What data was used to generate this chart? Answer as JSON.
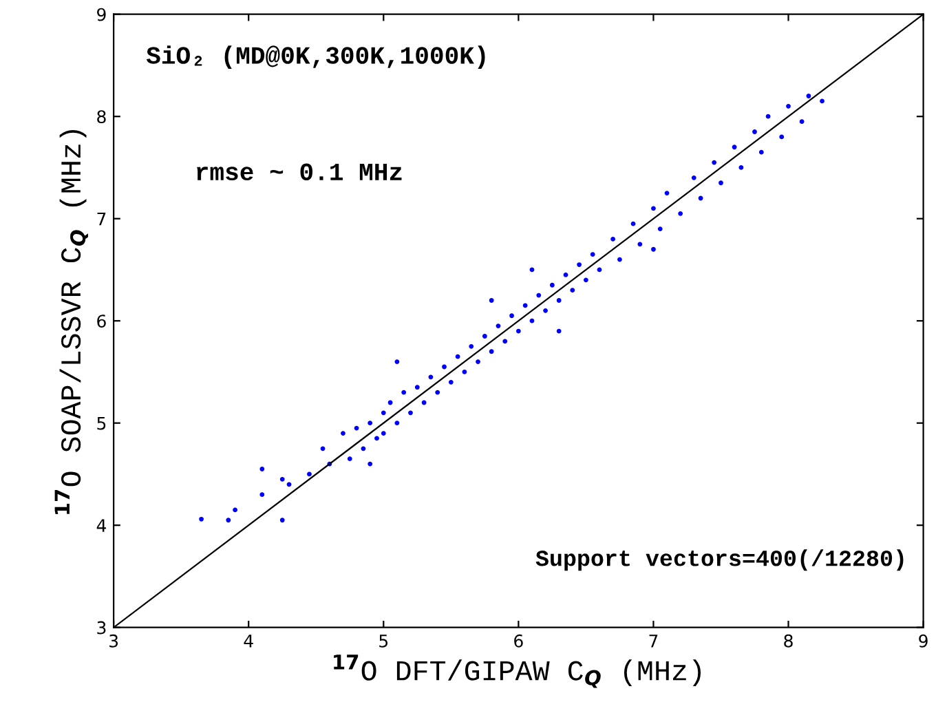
{
  "chart_data": {
    "type": "scatter",
    "xlabel": "$^{17}$O DFT/GIPAW C$_{Q}$ (MHz)",
    "ylabel": "$^{17}$O SOAP/LSSVR C$_{Q}$ (MHz)",
    "annotations": [
      "SiO₂ (MD@0K,300K,1000K)",
      "rmse ~ 0.1 MHz",
      "Support vectors=400(/12280)"
    ],
    "xlim": [
      3,
      9
    ],
    "ylim": [
      3,
      9
    ],
    "xticks": [
      3,
      4,
      5,
      6,
      7,
      8,
      9
    ],
    "yticks": [
      3,
      4,
      5,
      6,
      7,
      8,
      9
    ],
    "grid": false,
    "legend": false,
    "marker": "circle",
    "series": [
      {
        "color": "#0000ff",
        "x": [
          3.65,
          3.85,
          3.9,
          4.1,
          4.1,
          4.25,
          4.25,
          4.3,
          4.45,
          4.55,
          4.6,
          4.7,
          4.75,
          4.8,
          4.85,
          4.9,
          4.95,
          5.0,
          5.0,
          5.05,
          5.1,
          5.15,
          5.2,
          5.25,
          5.3,
          5.35,
          5.4,
          5.45,
          5.5,
          5.55,
          5.6,
          5.65,
          5.7,
          5.75,
          5.8,
          5.85,
          5.9,
          5.95,
          6.0,
          6.05,
          6.1,
          6.15,
          6.2,
          6.25,
          6.3,
          6.35,
          6.4,
          6.45,
          6.5,
          6.55,
          6.6,
          6.7,
          6.75,
          6.85,
          6.9,
          7.0,
          7.05,
          7.1,
          7.2,
          7.3,
          7.35,
          7.45,
          7.5,
          7.6,
          7.65,
          7.75,
          7.8,
          7.85,
          7.95,
          8.0,
          8.1,
          8.15,
          8.25,
          5.1,
          4.9,
          6.1,
          6.3,
          7.0,
          5.8
        ],
        "values": [
          4.06,
          4.05,
          4.15,
          4.3,
          4.55,
          4.05,
          4.45,
          4.4,
          4.5,
          4.75,
          4.6,
          4.9,
          4.65,
          4.95,
          4.75,
          5.0,
          4.85,
          5.1,
          4.9,
          5.2,
          5.0,
          5.3,
          5.1,
          5.35,
          5.2,
          5.45,
          5.3,
          5.55,
          5.4,
          5.65,
          5.5,
          5.75,
          5.6,
          5.85,
          5.7,
          5.95,
          5.8,
          6.05,
          5.9,
          6.15,
          6.0,
          6.25,
          6.1,
          6.35,
          6.2,
          6.45,
          6.3,
          6.55,
          6.4,
          6.65,
          6.5,
          6.8,
          6.6,
          6.95,
          6.75,
          7.1,
          6.9,
          7.25,
          7.05,
          7.4,
          7.2,
          7.55,
          7.35,
          7.7,
          7.5,
          7.85,
          7.65,
          8.0,
          7.8,
          8.1,
          7.95,
          8.2,
          8.15,
          5.6,
          4.6,
          6.5,
          5.9,
          6.7,
          6.2
        ]
      },
      {
        "type": "line",
        "color": "#000000",
        "marker": "none",
        "line_style": "solid",
        "x": [
          3,
          9
        ],
        "values": [
          3,
          9
        ]
      }
    ]
  }
}
